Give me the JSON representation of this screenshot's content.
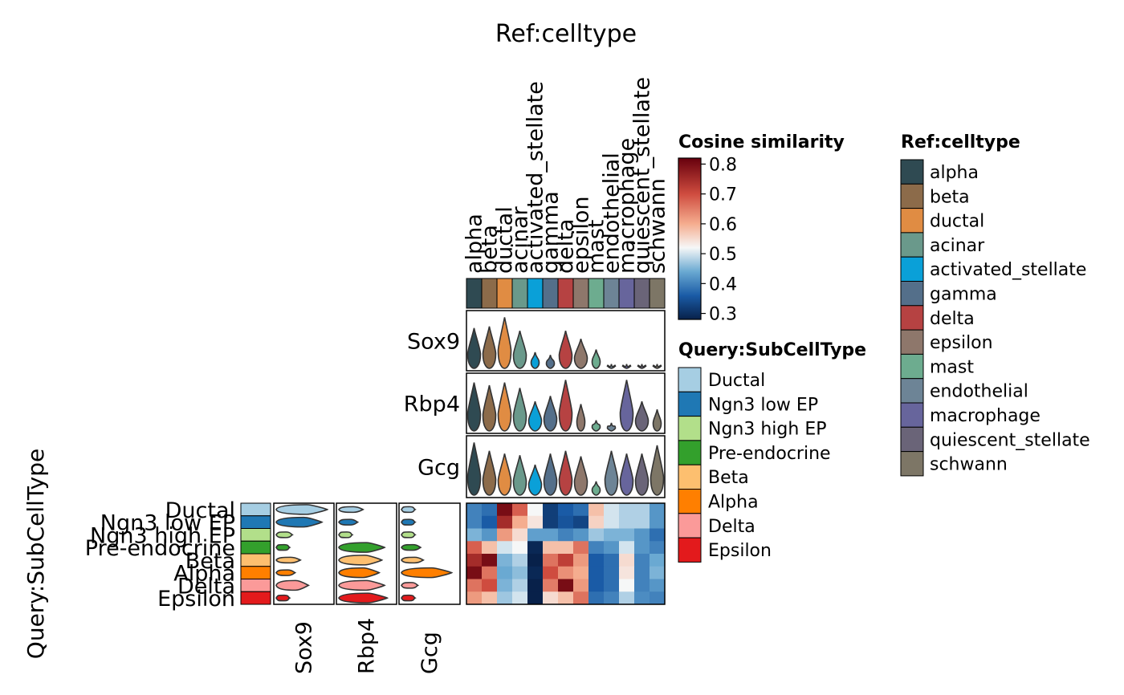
{
  "chart_data": {
    "type": "heatmap",
    "title": "Ref:celltype",
    "ylabel": "Query:SubCellType",
    "ref_celltypes": [
      {
        "name": "alpha",
        "color": "#2f4a52"
      },
      {
        "name": "beta",
        "color": "#8c6b4a"
      },
      {
        "name": "ductal",
        "color": "#e08c43"
      },
      {
        "name": "acinar",
        "color": "#6a998b"
      },
      {
        "name": "activated_stellate",
        "color": "#0aa0d8"
      },
      {
        "name": "gamma",
        "color": "#546f8a"
      },
      {
        "name": "delta",
        "color": "#b64242"
      },
      {
        "name": "epsilon",
        "color": "#8e776b"
      },
      {
        "name": "mast",
        "color": "#6dac8f"
      },
      {
        "name": "endothelial",
        "color": "#6d8496"
      },
      {
        "name": "macrophage",
        "color": "#67659c"
      },
      {
        "name": "quiescent_stellate",
        "color": "#6a6478"
      },
      {
        "name": "schwann",
        "color": "#7d7666"
      }
    ],
    "query_subcelltypes": [
      {
        "name": "Ductal",
        "color": "#a6cee3"
      },
      {
        "name": "Ngn3 low EP",
        "color": "#1f78b4"
      },
      {
        "name": "Ngn3 high EP",
        "color": "#b2df8a"
      },
      {
        "name": "Pre-endocrine",
        "color": "#33a02c"
      },
      {
        "name": "Beta",
        "color": "#fdbf6f"
      },
      {
        "name": "Alpha",
        "color": "#ff7f00"
      },
      {
        "name": "Delta",
        "color": "#fb9a99"
      },
      {
        "name": "Epsilon",
        "color": "#e31a1c"
      }
    ],
    "features": [
      "Sox9",
      "Rbp4",
      "Gcg"
    ],
    "similarity": [
      [
        0.4,
        0.38,
        0.8,
        0.68,
        0.52,
        0.32,
        0.36,
        0.38,
        0.58,
        0.5,
        0.48,
        0.48,
        0.42
      ],
      [
        0.4,
        0.36,
        0.75,
        0.6,
        0.54,
        0.32,
        0.35,
        0.33,
        0.56,
        0.5,
        0.48,
        0.48,
        0.42
      ],
      [
        0.45,
        0.42,
        0.62,
        0.55,
        0.43,
        0.43,
        0.4,
        0.42,
        0.47,
        0.45,
        0.45,
        0.42,
        0.38
      ],
      [
        0.68,
        0.58,
        0.5,
        0.52,
        0.29,
        0.58,
        0.58,
        0.66,
        0.4,
        0.42,
        0.5,
        0.42,
        0.4
      ],
      [
        0.75,
        0.8,
        0.45,
        0.48,
        0.28,
        0.66,
        0.72,
        0.62,
        0.36,
        0.38,
        0.55,
        0.4,
        0.44
      ],
      [
        0.8,
        0.66,
        0.44,
        0.46,
        0.29,
        0.7,
        0.63,
        0.6,
        0.36,
        0.38,
        0.54,
        0.4,
        0.45
      ],
      [
        0.66,
        0.7,
        0.45,
        0.48,
        0.28,
        0.65,
        0.8,
        0.62,
        0.36,
        0.38,
        0.52,
        0.4,
        0.42
      ],
      [
        0.62,
        0.58,
        0.47,
        0.5,
        0.28,
        0.55,
        0.58,
        0.66,
        0.38,
        0.4,
        0.48,
        0.41,
        0.4
      ]
    ],
    "color_scale": {
      "name": "Cosine similarity",
      "min": 0.28,
      "max": 0.82,
      "ticks": [
        "0.3",
        "0.4",
        "0.5",
        "0.6",
        "0.7",
        "0.8"
      ],
      "tick_values": [
        0.3,
        0.4,
        0.5,
        0.6,
        0.7,
        0.8
      ],
      "stops": [
        {
          "v": 0.28,
          "c": "#08214a"
        },
        {
          "v": 0.36,
          "c": "#1a5ba6"
        },
        {
          "v": 0.44,
          "c": "#6aa9d2"
        },
        {
          "v": 0.52,
          "c": "#f6f7f7"
        },
        {
          "v": 0.6,
          "c": "#f5ad8f"
        },
        {
          "v": 0.7,
          "c": "#cf4c3f"
        },
        {
          "v": 0.82,
          "c": "#67000d"
        }
      ]
    },
    "ref_violin_heights": {
      "Sox9": [
        0.75,
        0.78,
        0.95,
        0.7,
        0.3,
        0.25,
        0.7,
        0.55,
        0.35,
        0.08,
        0.08,
        0.08,
        0.08
      ],
      "Rbp4": [
        0.9,
        0.85,
        0.9,
        0.8,
        0.55,
        0.65,
        0.95,
        0.5,
        0.2,
        0.15,
        0.95,
        0.55,
        0.4
      ],
      "Gcg": [
        0.95,
        0.8,
        0.75,
        0.72,
        0.55,
        0.75,
        0.8,
        0.7,
        0.25,
        0.8,
        0.75,
        0.75,
        0.9
      ]
    },
    "query_violin_widths": {
      "Sox9": [
        0.95,
        0.85,
        0.3,
        0.25,
        0.45,
        0.35,
        0.6,
        0.25
      ],
      "Rbp4": [
        0.45,
        0.35,
        0.25,
        0.85,
        0.8,
        0.75,
        0.85,
        0.9
      ],
      "Gcg": [
        0.25,
        0.25,
        0.25,
        0.35,
        0.4,
        0.92,
        0.3,
        0.25
      ]
    },
    "legends": {
      "similarity_title": "Cosine similarity",
      "query_title": "Query:SubCellType",
      "ref_title": "Ref:celltype"
    }
  }
}
